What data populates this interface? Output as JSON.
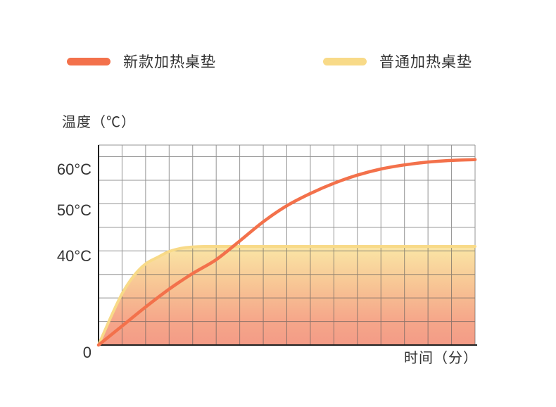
{
  "chart_data": {
    "type": "line",
    "title": "",
    "ylabel": "温度（℃）",
    "xlabel": "时间（分）",
    "origin_label": "0",
    "legend_position": "top",
    "grid": true,
    "xlim": [
      0,
      16
    ],
    "ylim": [
      0,
      65
    ],
    "yticks": [
      {
        "label": "40°C",
        "value": 40
      },
      {
        "label": "50°C",
        "value": 50
      },
      {
        "label": "60°C",
        "value": 60
      }
    ],
    "series": [
      {
        "name": "新款加热桌垫",
        "color": "#F3714B",
        "x": [
          0,
          1,
          2,
          3,
          4,
          5,
          6,
          7,
          8,
          9,
          10,
          11,
          12,
          13,
          14,
          15,
          16
        ],
        "y": [
          0,
          8.5,
          17,
          25,
          32,
          38.2,
          43.2,
          47.4,
          51,
          54,
          56.5,
          58.5,
          60,
          61,
          61.7,
          62.1,
          62.3
        ]
      },
      {
        "name": "普通加热桌垫",
        "color": "#F8DA88",
        "fill": true,
        "x": [
          0,
          0.5,
          1,
          1.5,
          2,
          2.5,
          3,
          3.5,
          4,
          4.5,
          5,
          6,
          7,
          8,
          10,
          12,
          14,
          16
        ],
        "y": [
          0,
          12,
          23,
          31,
          36.3,
          39.2,
          40.9,
          41.6,
          41.9,
          42,
          42,
          42,
          42,
          42,
          42,
          42,
          42,
          42
        ]
      }
    ],
    "fill_gradient": [
      "#FAE6A1",
      "#F7C28F",
      "#F5A284",
      "#F39680"
    ],
    "colors": {
      "grid": "#5c5c5c",
      "axis": "#1f1f1f",
      "text": "#333333"
    }
  }
}
